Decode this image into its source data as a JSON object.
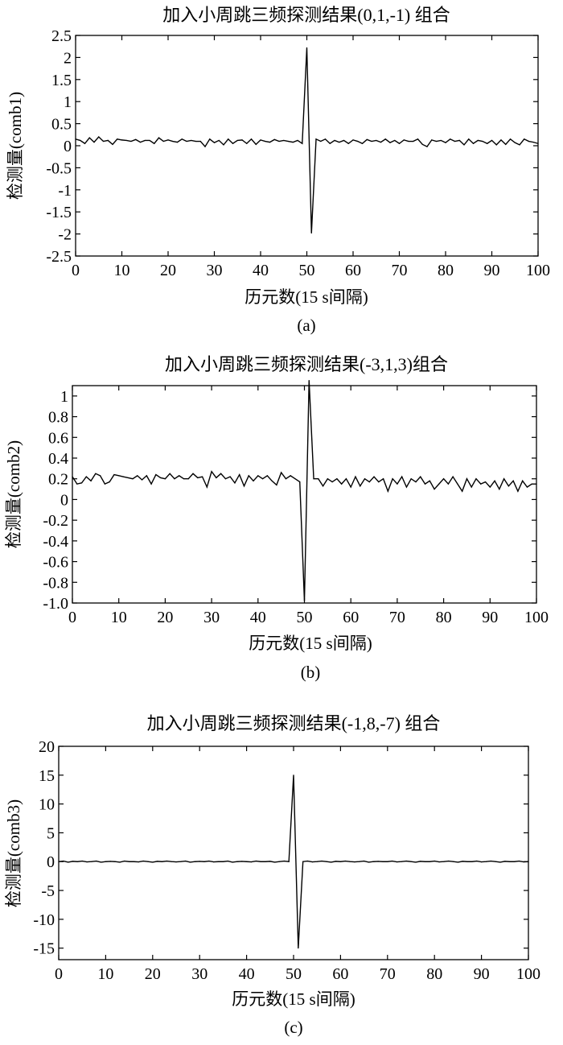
{
  "chart_data": [
    {
      "type": "line",
      "caption": "(a)",
      "title": "加入小周跳三频探测结果(0,1,-1) 组合",
      "xlabel": "历元数(15 s间隔)",
      "ylabel": "检测量(comb1)",
      "xlim": [
        0,
        100
      ],
      "ylim": [
        -2.5,
        2.5
      ],
      "xticks": [
        0,
        10,
        20,
        30,
        40,
        50,
        60,
        70,
        80,
        90,
        100
      ],
      "xtick_labels": [
        "0",
        "10",
        "20",
        "30",
        "40",
        "50",
        "60",
        "70",
        "80",
        "90",
        "100"
      ],
      "yticks": [
        2.5,
        2,
        1.5,
        1,
        0.5,
        0,
        -0.5,
        -1,
        -1.5,
        -2,
        -2.5
      ],
      "ytick_labels": [
        "2.5",
        "2",
        "1.5",
        "1",
        "0.5",
        "0",
        "-0.5",
        "-1",
        "-1.5",
        "-2",
        "-2.5"
      ],
      "grid": false,
      "series": [
        {
          "x": [
            0,
            1,
            2,
            3,
            4,
            5,
            6,
            7,
            8,
            9,
            10,
            11,
            12,
            13,
            14,
            15,
            16,
            17,
            18,
            19,
            20,
            21,
            22,
            23,
            24,
            25,
            26,
            27,
            28,
            29,
            30,
            31,
            32,
            33,
            34,
            35,
            36,
            37,
            38,
            39,
            40,
            41,
            42,
            43,
            44,
            45,
            46,
            47,
            48,
            49,
            50,
            51,
            52,
            53,
            54,
            55,
            56,
            57,
            58,
            59,
            60,
            61,
            62,
            63,
            64,
            65,
            66,
            67,
            68,
            69,
            70,
            71,
            72,
            73,
            74,
            75,
            76,
            77,
            78,
            79,
            80,
            81,
            82,
            83,
            84,
            85,
            86,
            87,
            88,
            89,
            90,
            91,
            92,
            93,
            94,
            95,
            96,
            97,
            98,
            99,
            100
          ],
          "values": [
            0.15,
            0.12,
            0.05,
            0.18,
            0.08,
            0.2,
            0.1,
            0.12,
            0.03,
            0.15,
            0.13,
            0.12,
            0.1,
            0.14,
            0.08,
            0.12,
            0.12,
            0.05,
            0.18,
            0.1,
            0.13,
            0.1,
            0.08,
            0.15,
            0.1,
            0.12,
            0.1,
            0.1,
            -0.02,
            0.15,
            0.07,
            0.12,
            0.02,
            0.15,
            0.05,
            0.12,
            0.13,
            0.05,
            0.15,
            0.03,
            0.13,
            0.1,
            0.08,
            0.14,
            0.1,
            0.12,
            0.1,
            0.08,
            0.12,
            0.05,
            2.22,
            -1.98,
            0.15,
            0.1,
            0.15,
            0.05,
            0.12,
            0.08,
            0.12,
            0.05,
            0.13,
            0.1,
            0.05,
            0.14,
            0.1,
            0.12,
            0.08,
            0.15,
            0.07,
            0.12,
            0.05,
            0.13,
            0.1,
            0.1,
            0.15,
            0.03,
            -0.02,
            0.13,
            0.1,
            0.12,
            0.07,
            0.15,
            0.1,
            0.12,
            0.02,
            0.15,
            0.05,
            0.12,
            0.1,
            0.05,
            0.12,
            0.02,
            0.13,
            0.03,
            0.15,
            0.07,
            0.02,
            0.15,
            0.1,
            0.08,
            0.05
          ]
        }
      ]
    },
    {
      "type": "line",
      "caption": "(b)",
      "title": "加入小周跳三频探测结果(-3,1,3)组合",
      "xlabel": "历元数(15 s间隔)",
      "ylabel": "检测量(comb2)",
      "xlim": [
        0,
        100
      ],
      "ylim": [
        -1.0,
        1.1
      ],
      "xticks": [
        0,
        10,
        20,
        30,
        40,
        50,
        60,
        70,
        80,
        90,
        100
      ],
      "xtick_labels": [
        "0",
        "10",
        "20",
        "30",
        "40",
        "50",
        "60",
        "70",
        "80",
        "90",
        "100"
      ],
      "yticks": [
        1,
        0.8,
        0.6,
        0.4,
        0.2,
        0,
        -0.2,
        -0.4,
        -0.6,
        -0.8,
        -1.0
      ],
      "ytick_labels": [
        "1",
        "0.8",
        "0.6",
        "0.4",
        "0.2",
        "0",
        "-0.2",
        "-0.4",
        "-0.6",
        "-0.8",
        "-1.0"
      ],
      "grid": false,
      "series": [
        {
          "x": [
            0,
            1,
            2,
            3,
            4,
            5,
            6,
            7,
            8,
            9,
            10,
            11,
            12,
            13,
            14,
            15,
            16,
            17,
            18,
            19,
            20,
            21,
            22,
            23,
            24,
            25,
            26,
            27,
            28,
            29,
            30,
            31,
            32,
            33,
            34,
            35,
            36,
            37,
            38,
            39,
            40,
            41,
            42,
            43,
            44,
            45,
            46,
            47,
            48,
            49,
            50,
            51,
            52,
            53,
            54,
            55,
            56,
            57,
            58,
            59,
            60,
            61,
            62,
            63,
            64,
            65,
            66,
            67,
            68,
            69,
            70,
            71,
            72,
            73,
            74,
            75,
            76,
            77,
            78,
            79,
            80,
            81,
            82,
            83,
            84,
            85,
            86,
            87,
            88,
            89,
            90,
            91,
            92,
            93,
            94,
            95,
            96,
            97,
            98,
            99,
            100
          ],
          "values": [
            0.22,
            0.15,
            0.16,
            0.22,
            0.18,
            0.25,
            0.23,
            0.15,
            0.17,
            0.24,
            0.23,
            0.22,
            0.21,
            0.2,
            0.23,
            0.19,
            0.23,
            0.15,
            0.24,
            0.21,
            0.2,
            0.25,
            0.2,
            0.23,
            0.2,
            0.2,
            0.25,
            0.21,
            0.22,
            0.12,
            0.27,
            0.21,
            0.25,
            0.2,
            0.22,
            0.16,
            0.24,
            0.13,
            0.23,
            0.18,
            0.23,
            0.2,
            0.23,
            0.18,
            0.14,
            0.26,
            0.2,
            0.23,
            0.2,
            0.17,
            -0.98,
            1.15,
            0.2,
            0.2,
            0.13,
            0.2,
            0.17,
            0.2,
            0.15,
            0.2,
            0.12,
            0.22,
            0.13,
            0.2,
            0.17,
            0.22,
            0.17,
            0.2,
            0.08,
            0.2,
            0.15,
            0.22,
            0.12,
            0.2,
            0.17,
            0.22,
            0.15,
            0.18,
            0.1,
            0.15,
            0.2,
            0.15,
            0.22,
            0.15,
            0.08,
            0.2,
            0.12,
            0.2,
            0.15,
            0.17,
            0.12,
            0.18,
            0.1,
            0.2,
            0.13,
            0.18,
            0.08,
            0.18,
            0.12,
            0.15,
            0.15
          ]
        }
      ]
    },
    {
      "type": "line",
      "caption": "(c)",
      "title": "加入小周跳三频探测结果(-1,8,-7) 组合",
      "xlabel": "历元数(15 s间隔)",
      "ylabel": "检测量(comb3)",
      "xlim": [
        0,
        100
      ],
      "ylim": [
        -17,
        20
      ],
      "xticks": [
        0,
        10,
        20,
        30,
        40,
        50,
        60,
        70,
        80,
        90,
        100
      ],
      "xtick_labels": [
        "0",
        "10",
        "20",
        "30",
        "40",
        "50",
        "60",
        "70",
        "80",
        "90",
        "100"
      ],
      "yticks": [
        20,
        15,
        10,
        5,
        0,
        -5,
        -10,
        -15
      ],
      "ytick_labels": [
        "20",
        "15",
        "10",
        "5",
        "0",
        "-5",
        "-10",
        "-15"
      ],
      "grid": false,
      "series": [
        {
          "x": [
            0,
            1,
            2,
            3,
            4,
            5,
            6,
            7,
            8,
            9,
            10,
            11,
            12,
            13,
            14,
            15,
            16,
            17,
            18,
            19,
            20,
            21,
            22,
            23,
            24,
            25,
            26,
            27,
            28,
            29,
            30,
            31,
            32,
            33,
            34,
            35,
            36,
            37,
            38,
            39,
            40,
            41,
            42,
            43,
            44,
            45,
            46,
            47,
            48,
            49,
            50,
            51,
            52,
            53,
            54,
            55,
            56,
            57,
            58,
            59,
            60,
            61,
            62,
            63,
            64,
            65,
            66,
            67,
            68,
            69,
            70,
            71,
            72,
            73,
            74,
            75,
            76,
            77,
            78,
            79,
            80,
            81,
            82,
            83,
            84,
            85,
            86,
            87,
            88,
            89,
            90,
            91,
            92,
            93,
            94,
            95,
            96,
            97,
            98,
            99,
            100
          ],
          "values": [
            0,
            0.1,
            -0.1,
            0.05,
            0,
            0.1,
            -0.05,
            0,
            0.1,
            -0.1,
            0,
            0.05,
            0,
            -0.1,
            0.1,
            0,
            0,
            -0.05,
            0.1,
            0,
            -0.1,
            0.05,
            0,
            0.1,
            0,
            -0.05,
            0,
            0.1,
            -0.1,
            0,
            0.05,
            0,
            0.1,
            -0.05,
            0,
            0,
            0.1,
            -0.1,
            0,
            0.05,
            0,
            -0.05,
            0.1,
            0,
            0,
            0.05,
            -0.1,
            0,
            0.1,
            0,
            15,
            -15,
            0,
            0.1,
            -0.05,
            0,
            0.1,
            0,
            -0.1,
            0.05,
            0,
            0.1,
            0,
            -0.05,
            0,
            0.1,
            -0.1,
            0,
            0.05,
            0,
            0,
            0.1,
            -0.05,
            0,
            0.1,
            0,
            -0.1,
            0.05,
            0,
            0,
            0.1,
            -0.05,
            0,
            0.1,
            0,
            -0.1,
            0.05,
            0,
            0,
            0.1,
            -0.05,
            0,
            0.1,
            0,
            -0.1,
            0.05,
            0,
            0,
            0.1,
            -0.05,
            0
          ]
        }
      ]
    }
  ]
}
